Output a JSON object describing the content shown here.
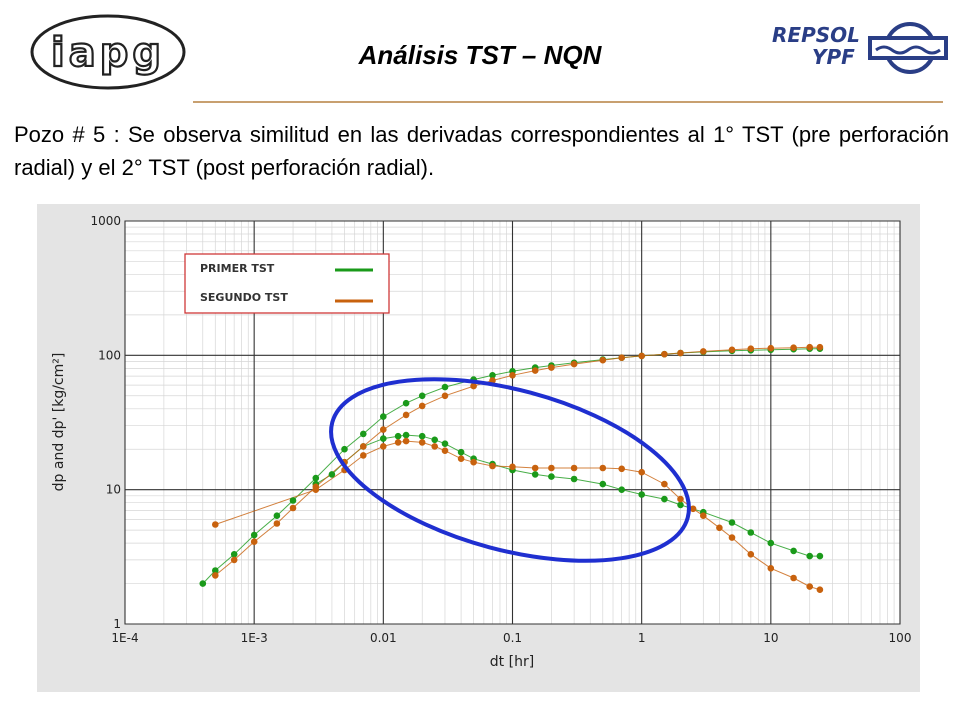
{
  "header": {
    "title": "Análisis TST – NQN",
    "logo_left_text": "iapg",
    "logo_right_text_1": "REPSOL",
    "logo_right_text_2": "YPF"
  },
  "description": "Pozo # 5 : Se observa similitud en las derivadas correspondientes al 1° TST (pre perforación radial) y el 2° TST (post perforación radial).",
  "chart_data": {
    "type": "scatter",
    "xlabel": "dt [hr]",
    "ylabel": "dp and dp' [kg/cm²]",
    "x_scale": "log",
    "y_scale": "log",
    "xlim": [
      0.0001,
      100
    ],
    "ylim": [
      1,
      1000
    ],
    "x_ticks": [
      "1E-4",
      "1E-3",
      "0.01",
      "0.1",
      "1",
      "10",
      "100"
    ],
    "y_ticks": [
      "1",
      "10",
      "100",
      "1000"
    ],
    "grid": true,
    "legend_position": "top-left",
    "colors": {
      "primer": "#1a9a1a",
      "segundo": "#c8620e",
      "highlight_ellipse": "#1f2fd0"
    },
    "series": [
      {
        "name": "PRIMER TST",
        "pressure_x": [
          0.0004,
          0.0005,
          0.0007,
          0.001,
          0.0015,
          0.002,
          0.003,
          0.005,
          0.007,
          0.01,
          0.015,
          0.02,
          0.03,
          0.05,
          0.07,
          0.1,
          0.15,
          0.2,
          0.3,
          0.5,
          0.7,
          1,
          1.5,
          2,
          3,
          5,
          7,
          10,
          15,
          20,
          24
        ],
        "pressure_y": [
          2.0,
          2.5,
          3.3,
          4.6,
          6.4,
          8.3,
          12.2,
          20,
          26,
          35,
          44,
          50,
          58,
          66,
          71,
          76,
          81,
          84,
          88,
          93,
          96,
          99,
          102,
          104,
          106,
          108,
          109,
          110,
          111,
          112,
          112
        ],
        "derivative_x": [
          0.003,
          0.004,
          0.005,
          0.007,
          0.01,
          0.013,
          0.015,
          0.02,
          0.025,
          0.03,
          0.04,
          0.05,
          0.07,
          0.1,
          0.15,
          0.2,
          0.3,
          0.5,
          0.7,
          1,
          1.5,
          2,
          3,
          5,
          7,
          10,
          15,
          20,
          24
        ],
        "derivative_y": [
          11,
          13,
          16,
          21,
          24,
          25,
          25.5,
          25,
          23.5,
          22,
          19,
          17,
          15.5,
          14,
          13,
          12.5,
          12,
          11,
          10,
          9.2,
          8.5,
          7.7,
          6.8,
          5.7,
          4.8,
          4.0,
          3.5,
          3.2,
          3.2
        ]
      },
      {
        "name": "SEGUNDO TST",
        "pressure_x": [
          0.0005,
          0.0007,
          0.001,
          0.0015,
          0.002,
          0.003,
          0.005,
          0.007,
          0.01,
          0.015,
          0.02,
          0.03,
          0.05,
          0.07,
          0.1,
          0.15,
          0.2,
          0.3,
          0.5,
          0.7,
          1,
          1.5,
          2,
          3,
          5,
          7,
          10,
          15,
          20,
          24
        ],
        "pressure_y": [
          2.3,
          3.0,
          4.1,
          5.6,
          7.3,
          10.5,
          16,
          21,
          28,
          36,
          42,
          50,
          59,
          65,
          71,
          77,
          81,
          86,
          92,
          96,
          99,
          102,
          104,
          107,
          110,
          112,
          113,
          114,
          115,
          115
        ],
        "derivative_x": [
          0.0005,
          0.003,
          0.005,
          0.007,
          0.01,
          0.013,
          0.015,
          0.02,
          0.025,
          0.03,
          0.04,
          0.05,
          0.07,
          0.1,
          0.15,
          0.2,
          0.3,
          0.5,
          0.7,
          1,
          1.5,
          2,
          2.5,
          3,
          4,
          5,
          7,
          10,
          15,
          20,
          24
        ],
        "derivative_y": [
          5.5,
          10,
          14,
          18,
          21,
          22.5,
          23,
          22.5,
          21,
          19.5,
          17,
          16,
          15,
          14.8,
          14.5,
          14.5,
          14.5,
          14.5,
          14.3,
          13.5,
          11,
          8.5,
          7.2,
          6.4,
          5.2,
          4.4,
          3.3,
          2.6,
          2.2,
          1.9,
          1.8
        ]
      }
    ]
  }
}
